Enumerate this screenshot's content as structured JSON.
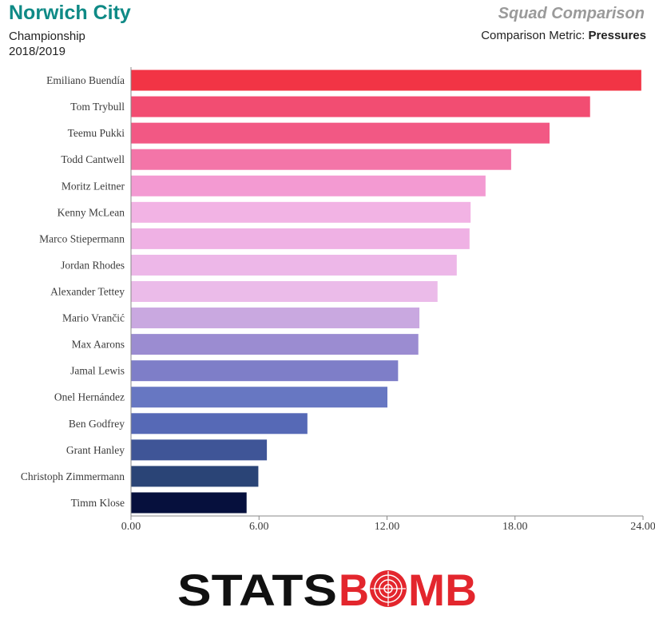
{
  "header": {
    "team": "Norwich City",
    "competition": "Championship",
    "season": "2018/2019",
    "title": "Squad Comparison",
    "metric_prefix": "Comparison Metric:",
    "metric": "Pressures"
  },
  "chart_data": {
    "type": "bar",
    "orientation": "horizontal",
    "categories": [
      "Emiliano Buendía",
      "Tom Trybull",
      "Teemu Pukki",
      "Todd Cantwell",
      "Moritz Leitner",
      "Kenny McLean",
      "Marco Stiepermann",
      "Jordan Rhodes",
      "Alexander Tettey",
      "Mario Vrančić",
      "Max Aarons",
      "Jamal Lewis",
      "Onel Hernández",
      "Ben Godfrey",
      "Grant Hanley",
      "Christoph Zimmermann",
      "Timm Klose"
    ],
    "values": [
      23.9,
      21.5,
      19.6,
      17.8,
      16.6,
      15.9,
      15.85,
      15.25,
      14.35,
      13.5,
      13.45,
      12.5,
      12.0,
      8.25,
      6.35,
      5.95,
      5.4
    ],
    "colors": [
      "#f23445",
      "#f24d72",
      "#f25884",
      "#f375a8",
      "#f39ad2",
      "#f2b3e4",
      "#efb1e4",
      "#edb7e8",
      "#ebbbe9",
      "#c9a8e0",
      "#9b8cd1",
      "#7e7ec8",
      "#6777c2",
      "#5669b6",
      "#3f5597",
      "#2a4476",
      "#06103d"
    ],
    "xlim": [
      0,
      24
    ],
    "xticks": [
      "0.00",
      "6.00",
      "12.00",
      "18.00",
      "24.00"
    ],
    "xtick_values": [
      0,
      6,
      12,
      18,
      24
    ],
    "grid": false
  },
  "footer": {
    "logo_left": "STATS",
    "logo_b": "B",
    "logo_right": "MB"
  }
}
